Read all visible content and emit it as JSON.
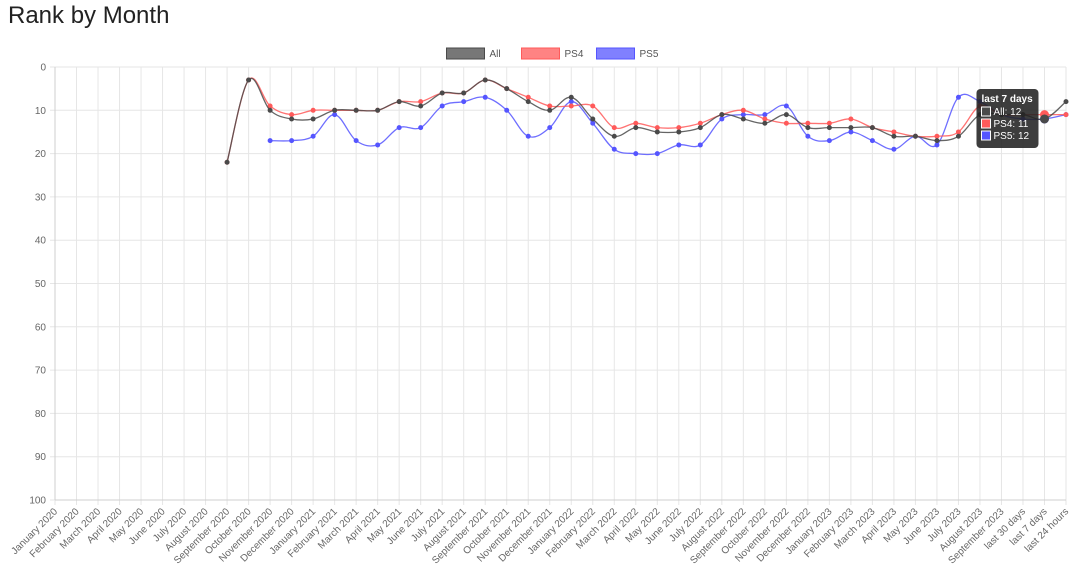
{
  "page": {
    "title": "Rank by Month"
  },
  "colors": {
    "all": "#4a4a4a",
    "ps4": "#ff5a5a",
    "ps5": "#5555ff",
    "grid": "#e6e6e6",
    "tooltip_bg": "#222222"
  },
  "chart_data": {
    "type": "line",
    "title": "",
    "xlabel": "",
    "ylabel": "",
    "ylim": [
      0,
      100
    ],
    "y_reversed": true,
    "yticks": [
      0,
      10,
      20,
      30,
      40,
      50,
      60,
      70,
      80,
      90,
      100
    ],
    "grid": true,
    "legend_position": "top",
    "categories": [
      "January 2020",
      "February 2020",
      "March 2020",
      "April 2020",
      "May 2020",
      "June 2020",
      "July 2020",
      "August 2020",
      "September 2020",
      "October 2020",
      "November 2020",
      "December 2020",
      "January 2021",
      "February 2021",
      "March 2021",
      "April 2021",
      "May 2021",
      "June 2021",
      "July 2021",
      "August 2021",
      "September 2021",
      "October 2021",
      "November 2021",
      "December 2021",
      "January 2022",
      "February 2022",
      "March 2022",
      "April 2022",
      "May 2022",
      "June 2022",
      "July 2022",
      "August 2022",
      "September 2022",
      "October 2022",
      "November 2022",
      "December 2022",
      "January 2023",
      "February 2023",
      "March 2023",
      "April 2023",
      "May 2023",
      "June 2023",
      "July 2023",
      "August 2023",
      "September 2023",
      "last 30 days",
      "last 7 days",
      "last 24 hours"
    ],
    "series": [
      {
        "name": "All",
        "color": "#4a4a4a",
        "values": [
          null,
          null,
          null,
          null,
          null,
          null,
          null,
          null,
          22,
          3,
          10,
          12,
          12,
          10,
          10,
          10,
          8,
          9,
          6,
          6,
          3,
          5,
          8,
          10,
          7,
          12,
          16,
          14,
          15,
          15,
          14,
          11,
          12,
          13,
          11,
          14,
          14,
          14,
          14,
          16,
          16,
          17,
          16,
          11,
          11,
          11,
          12,
          8
        ]
      },
      {
        "name": "PS4",
        "color": "#ff5a5a",
        "values": [
          null,
          null,
          null,
          null,
          null,
          null,
          null,
          null,
          22,
          3,
          9,
          11,
          10,
          10,
          10,
          10,
          8,
          8,
          6,
          6,
          3,
          5,
          7,
          9,
          9,
          9,
          14,
          13,
          14,
          14,
          13,
          11,
          10,
          12,
          13,
          13,
          13,
          12,
          14,
          15,
          16,
          16,
          15,
          9,
          11,
          11,
          11,
          11
        ]
      },
      {
        "name": "PS5",
        "color": "#5555ff",
        "values": [
          null,
          null,
          null,
          null,
          null,
          null,
          null,
          null,
          null,
          null,
          17,
          17,
          16,
          11,
          17,
          18,
          14,
          14,
          9,
          8,
          7,
          10,
          16,
          14,
          8,
          13,
          19,
          20,
          20,
          18,
          18,
          12,
          11,
          11,
          9,
          16,
          17,
          15,
          17,
          19,
          16,
          18,
          7,
          8,
          11,
          12,
          12,
          11
        ]
      }
    ],
    "tooltip": {
      "category_index": 46,
      "title": "last 7 days",
      "lines": [
        "All: 12",
        "PS4: 11",
        "PS5: 12"
      ]
    }
  }
}
